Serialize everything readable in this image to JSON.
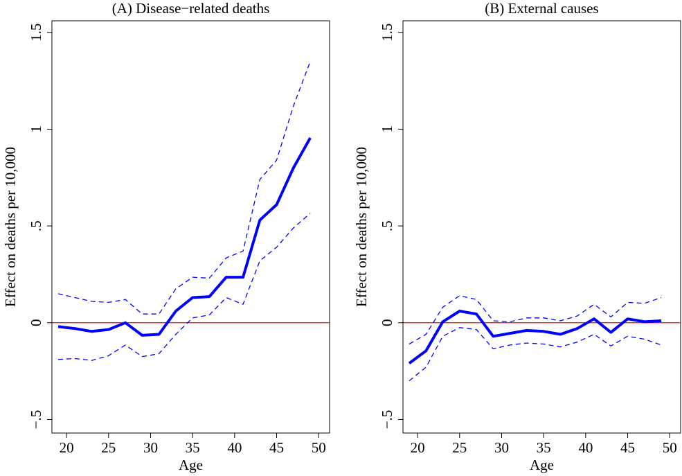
{
  "chart_data": [
    {
      "type": "line",
      "title": "(A) Disease−related deaths",
      "x_label": "Age",
      "y_label": "Effect on deaths per 10,000",
      "x": [
        19,
        21,
        23,
        25,
        27,
        29,
        31,
        33,
        35,
        37,
        39,
        41,
        43,
        45,
        47,
        49
      ],
      "series": [
        {
          "color": "#0000ff",
          "dashed": false,
          "line_width": 4,
          "values": [
            -0.02,
            -0.03,
            -0.045,
            -0.035,
            0.0,
            -0.065,
            -0.06,
            0.06,
            0.13,
            0.135,
            0.235,
            0.235,
            0.53,
            0.61,
            0.8,
            0.955
          ]
        },
        {
          "color": "#0000ff",
          "dashed": true,
          "line_width": 1.3,
          "values": [
            0.15,
            0.13,
            0.11,
            0.105,
            0.12,
            0.045,
            0.045,
            0.175,
            0.235,
            0.23,
            0.335,
            0.37,
            0.74,
            0.84,
            1.12,
            1.35
          ]
        },
        {
          "color": "#0000ff",
          "dashed": true,
          "line_width": 1.3,
          "values": [
            -0.19,
            -0.185,
            -0.195,
            -0.17,
            -0.115,
            -0.175,
            -0.16,
            -0.06,
            0.025,
            0.04,
            0.13,
            0.095,
            0.32,
            0.39,
            0.49,
            0.565
          ]
        }
      ],
      "xlim": [
        18.26,
        51.3
      ],
      "xticks": [
        20,
        25,
        30,
        35,
        40,
        45,
        50
      ],
      "ylim": [
        -0.57,
        1.56
      ],
      "yticks": [
        {
          "value": -0.5,
          "label": "−.5"
        },
        0,
        {
          "value": 0.5,
          "label": ".5"
        },
        1,
        1.5
      ],
      "hline": {
        "value": 0,
        "color": "#ff0000"
      }
    },
    {
      "type": "line",
      "title": "(B) External causes",
      "x_label": "Age",
      "y_label": "Effect on deaths per 10,000",
      "x": [
        19,
        21,
        23,
        25,
        27,
        29,
        31,
        33,
        35,
        37,
        39,
        41,
        43,
        45,
        47,
        49
      ],
      "series": [
        {
          "color": "#0000ff",
          "dashed": false,
          "line_width": 4,
          "values": [
            -0.21,
            -0.145,
            0.005,
            0.06,
            0.045,
            -0.07,
            -0.055,
            -0.04,
            -0.045,
            -0.06,
            -0.03,
            0.02,
            -0.05,
            0.02,
            0.005,
            0.01
          ]
        },
        {
          "color": "#0000ff",
          "dashed": true,
          "line_width": 1.3,
          "values": [
            -0.11,
            -0.06,
            0.08,
            0.14,
            0.12,
            0.01,
            0.005,
            0.025,
            0.025,
            0.01,
            0.035,
            0.095,
            0.03,
            0.105,
            0.1,
            0.13
          ]
        },
        {
          "color": "#0000ff",
          "dashed": true,
          "line_width": 1.3,
          "values": [
            -0.3,
            -0.23,
            -0.07,
            -0.025,
            -0.035,
            -0.135,
            -0.115,
            -0.105,
            -0.11,
            -0.125,
            -0.1,
            -0.06,
            -0.12,
            -0.07,
            -0.085,
            -0.115
          ]
        }
      ],
      "xlim": [
        18.26,
        51.3
      ],
      "xticks": [
        20,
        25,
        30,
        35,
        40,
        45,
        50
      ],
      "ylim": [
        -0.57,
        1.56
      ],
      "yticks": [
        {
          "value": -0.5,
          "label": "−.5"
        },
        0,
        {
          "value": 0.5,
          "label": ".5"
        },
        1,
        1.5
      ],
      "hline": {
        "value": 0,
        "color": "#ff0000"
      }
    }
  ]
}
